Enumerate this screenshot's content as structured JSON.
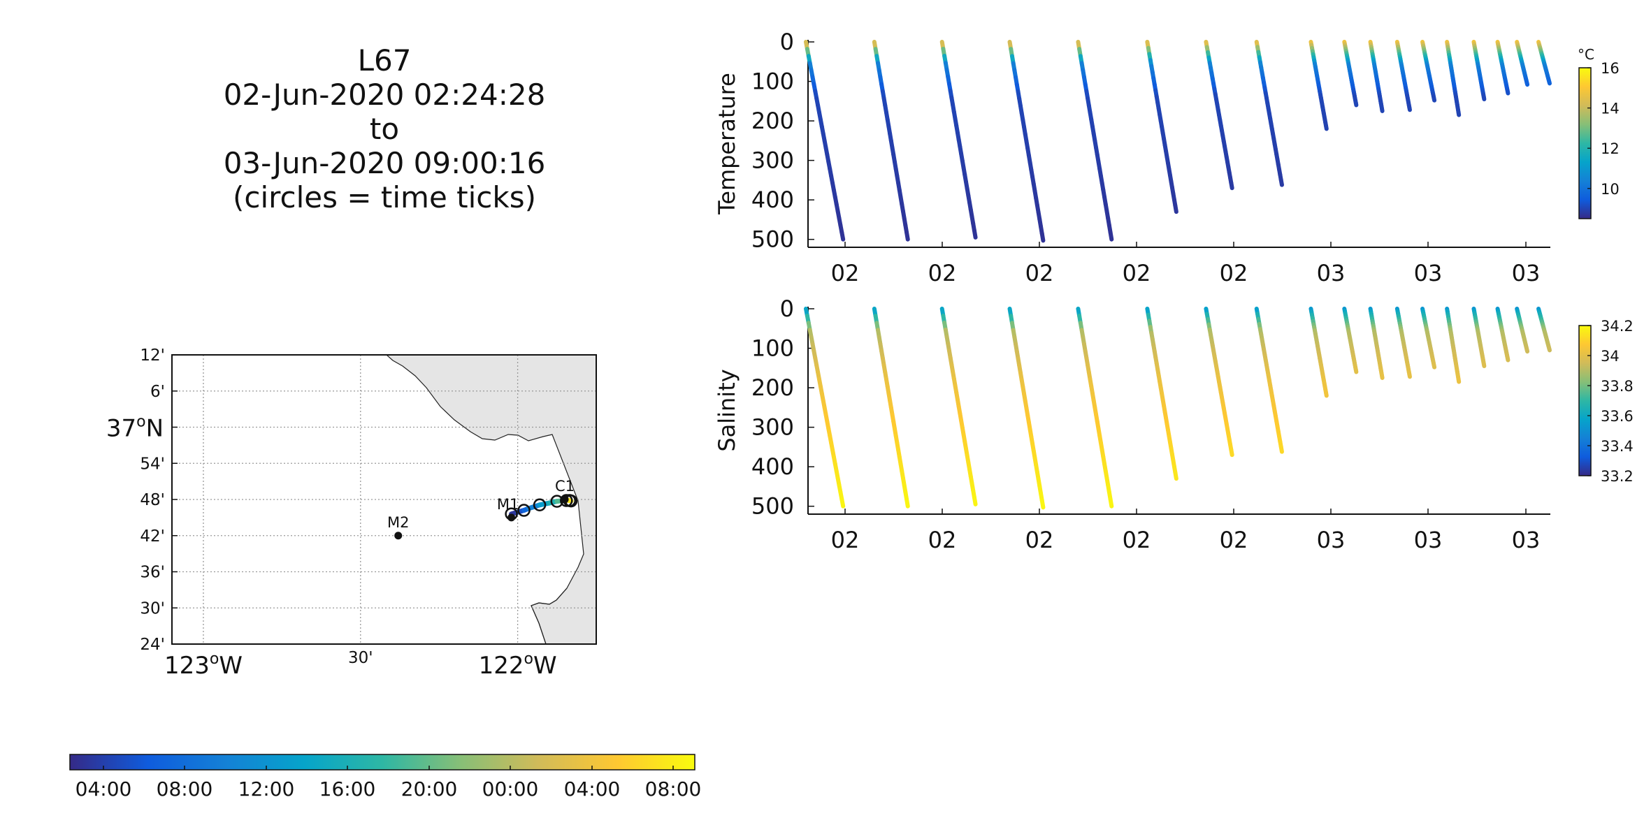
{
  "title": {
    "line1": "L67",
    "line2": "02-Jun-2020 02:24:28",
    "line3": "to",
    "line4": "03-Jun-2020 09:00:16",
    "line5": "(circles = time ticks)"
  },
  "colors": {
    "parula": [
      "#352a87",
      "#0f5cdd",
      "#1481d6",
      "#06a4ca",
      "#2eb7a4",
      "#87bf77",
      "#d1bb59",
      "#fec832",
      "#f9fb0e"
    ],
    "land": "#e5e5e5",
    "grid": "#999999",
    "axis": "#111111"
  },
  "chart_data": [
    {
      "type": "map",
      "name": "track-map",
      "lat_ticks": [
        "12'",
        "6'",
        "37°N",
        "54'",
        "48'",
        "42'",
        "36'",
        "30'",
        "24'"
      ],
      "lat_values": [
        37.2,
        37.1,
        37.0,
        36.9,
        36.8,
        36.7,
        36.6,
        36.5,
        36.4
      ],
      "lon_ticks": [
        "123°W",
        "30'",
        "122°W"
      ],
      "lon_values": [
        -123.0,
        -122.5,
        -122.0
      ],
      "lon_range": [
        -123.1,
        -121.75
      ],
      "lat_range": [
        36.4,
        37.2
      ],
      "stations": [
        {
          "label": "M2",
          "lon": -122.38,
          "lat": 36.7
        },
        {
          "label": "M1",
          "lon": -122.02,
          "lat": 36.75
        },
        {
          "label": "C1",
          "lon": -121.85,
          "lat": 36.8
        }
      ],
      "track_points": [
        {
          "lon": -122.02,
          "lat": 36.76,
          "t": 0.0
        },
        {
          "lon": -122.0,
          "lat": 36.765,
          "t": 0.06
        },
        {
          "lon": -121.98,
          "lat": 36.77,
          "t": 0.12
        },
        {
          "lon": -121.965,
          "lat": 36.775,
          "t": 0.2
        },
        {
          "lon": -121.93,
          "lat": 36.785,
          "t": 0.3
        },
        {
          "lon": -121.9,
          "lat": 36.79,
          "t": 0.4
        },
        {
          "lon": -121.875,
          "lat": 36.795,
          "t": 0.5
        },
        {
          "lon": -121.855,
          "lat": 36.797,
          "t": 0.6
        },
        {
          "lon": -121.845,
          "lat": 36.797,
          "t": 0.7
        },
        {
          "lon": -121.84,
          "lat": 36.798,
          "t": 0.8
        },
        {
          "lon": -121.835,
          "lat": 36.797,
          "t": 0.9
        },
        {
          "lon": -121.83,
          "lat": 36.796,
          "t": 1.0
        }
      ]
    },
    {
      "type": "colorbar",
      "name": "time-colorbar",
      "tick_labels": [
        "04:00",
        "08:00",
        "12:00",
        "16:00",
        "20:00",
        "00:00",
        "04:00",
        "08:00"
      ]
    },
    {
      "type": "scatter",
      "name": "temperature-section",
      "ylabel": "Temperature",
      "y_range": [
        0,
        520
      ],
      "y_ticks": [
        0,
        100,
        200,
        300,
        400,
        500
      ],
      "x_tick_labels": [
        "02",
        "02",
        "02",
        "02",
        "02",
        "03",
        "03",
        "03"
      ],
      "colorbar": {
        "unit": "°C",
        "range": [
          8.5,
          16
        ],
        "ticks": [
          10,
          12,
          14,
          16
        ]
      },
      "profiles": [
        {
          "x0": 0.0,
          "x1": 0.05,
          "max_depth": 500
        },
        {
          "x0": 0.092,
          "x1": 0.137,
          "max_depth": 500
        },
        {
          "x0": 0.183,
          "x1": 0.228,
          "max_depth": 495
        },
        {
          "x0": 0.274,
          "x1": 0.319,
          "max_depth": 503
        },
        {
          "x0": 0.366,
          "x1": 0.411,
          "max_depth": 500
        },
        {
          "x0": 0.459,
          "x1": 0.498,
          "max_depth": 430
        },
        {
          "x0": 0.538,
          "x1": 0.573,
          "max_depth": 370
        },
        {
          "x0": 0.606,
          "x1": 0.64,
          "max_depth": 362
        },
        {
          "x0": 0.679,
          "x1": 0.7,
          "max_depth": 220
        },
        {
          "x0": 0.724,
          "x1": 0.74,
          "max_depth": 160
        },
        {
          "x0": 0.759,
          "x1": 0.775,
          "max_depth": 175
        },
        {
          "x0": 0.795,
          "x1": 0.812,
          "max_depth": 172
        },
        {
          "x0": 0.829,
          "x1": 0.845,
          "max_depth": 148
        },
        {
          "x0": 0.862,
          "x1": 0.878,
          "max_depth": 185
        },
        {
          "x0": 0.898,
          "x1": 0.912,
          "max_depth": 145
        },
        {
          "x0": 0.93,
          "x1": 0.944,
          "max_depth": 130
        },
        {
          "x0": 0.956,
          "x1": 0.97,
          "max_depth": 108
        },
        {
          "x0": 0.985,
          "x1": 1.0,
          "max_depth": 105
        }
      ]
    },
    {
      "type": "scatter",
      "name": "salinity-section",
      "ylabel": "Salinity",
      "y_range": [
        0,
        520
      ],
      "y_ticks": [
        0,
        100,
        200,
        300,
        400,
        500
      ],
      "x_tick_labels": [
        "02",
        "02",
        "02",
        "02",
        "02",
        "03",
        "03",
        "03"
      ],
      "colorbar": {
        "unit": "",
        "range": [
          33.2,
          34.2
        ],
        "ticks": [
          33.2,
          33.4,
          33.6,
          33.8,
          34,
          34.2
        ],
        "tick_labels": [
          "33.2",
          "33.4",
          "33.6",
          "33.8",
          "34",
          "34.2"
        ]
      }
    }
  ]
}
